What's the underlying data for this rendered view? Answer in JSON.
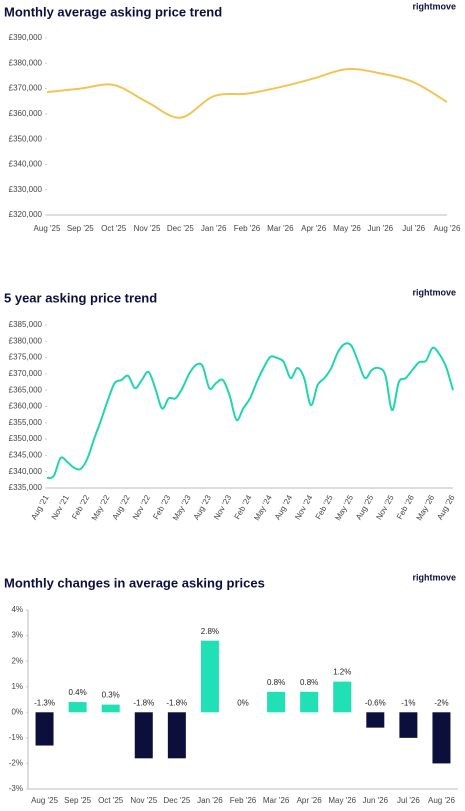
{
  "chart_data": [
    {
      "type": "line",
      "title": "Monthly average asking price trend",
      "logo": "rightmove",
      "color": "#f3c453",
      "categories": [
        "Aug '25",
        "Sep '25",
        "Oct '25",
        "Nov '25",
        "Dec '25",
        "Jan '26",
        "Feb '26",
        "Mar '26",
        "Apr '26",
        "May '26",
        "Jun '26",
        "Jul '26",
        "Aug '26"
      ],
      "values": [
        368600,
        370000,
        371400,
        364700,
        358500,
        367000,
        368000,
        370600,
        374000,
        377700,
        376000,
        372500,
        364700
      ],
      "ylim": [
        320000,
        390000
      ],
      "yticks": [
        {
          "value": 320000,
          "label": "£320,000"
        },
        {
          "value": 330000,
          "label": "£330,000"
        },
        {
          "value": 340000,
          "label": "£340,000"
        },
        {
          "value": 350000,
          "label": "£350,000"
        },
        {
          "value": 360000,
          "label": "£360,000"
        },
        {
          "value": 370000,
          "label": "£370,000"
        },
        {
          "value": 380000,
          "label": "£380,000"
        },
        {
          "value": 390000,
          "label": "£390,000"
        }
      ]
    },
    {
      "type": "line",
      "title": "5 year asking price trend",
      "logo": "rightmove",
      "color": "#1fd6ae",
      "categories": [
        "Aug '21",
        null,
        null,
        "Nov '21",
        null,
        null,
        "Feb '22",
        null,
        null,
        "May '22",
        null,
        null,
        "Aug '22",
        null,
        null,
        "Nov '22",
        null,
        null,
        "Feb '23",
        null,
        null,
        "May '23",
        null,
        null,
        "Aug '23",
        null,
        null,
        "Nov '23",
        null,
        null,
        "Feb '24",
        null,
        null,
        "May '24",
        null,
        null,
        "Aug '24",
        null,
        null,
        "Nov '24",
        null,
        null,
        "Feb '25",
        null,
        null,
        "May '25",
        null,
        null,
        "Aug '25",
        null,
        null,
        "Nov '25",
        null,
        null,
        "Feb '26",
        null,
        null,
        "May '26",
        null,
        null,
        "Aug '26"
      ],
      "values": [
        338100,
        338700,
        344200,
        343000,
        341200,
        340900,
        344200,
        350300,
        355900,
        362000,
        367200,
        368100,
        369400,
        365600,
        368100,
        370600,
        365600,
        359400,
        362500,
        362500,
        365600,
        370000,
        372700,
        372400,
        365600,
        367200,
        368100,
        363300,
        355900,
        359400,
        362500,
        367500,
        371800,
        375200,
        374900,
        373600,
        368700,
        371800,
        368700,
        360400,
        366600,
        368700,
        371800,
        376700,
        379200,
        378600,
        373600,
        368700,
        371200,
        371800,
        369600,
        358900,
        367500,
        368700,
        371200,
        373600,
        374000,
        378000,
        376000,
        372000,
        365000
      ],
      "ylim": [
        335000,
        385000
      ],
      "yticks": [
        {
          "value": 335000,
          "label": "£335,000"
        },
        {
          "value": 340000,
          "label": "£340,000"
        },
        {
          "value": 345000,
          "label": "£345,000"
        },
        {
          "value": 350000,
          "label": "£350,000"
        },
        {
          "value": 355000,
          "label": "£355,000"
        },
        {
          "value": 360000,
          "label": "£360,000"
        },
        {
          "value": 365000,
          "label": "£365,000"
        },
        {
          "value": 370000,
          "label": "£370,000"
        },
        {
          "value": 375000,
          "label": "£375,000"
        },
        {
          "value": 380000,
          "label": "£380,000"
        },
        {
          "value": 385000,
          "label": "£385,000"
        }
      ]
    },
    {
      "type": "bar",
      "title": "Monthly changes in average asking prices",
      "logo": "rightmove",
      "positive_color": "#21e0b5",
      "negative_color": "#0c0f3c",
      "categories": [
        "Aug '25",
        "Sep '25",
        "Oct '25",
        "Nov '25",
        "Dec '25",
        "Jan '26",
        "Feb '26",
        "Mar '26",
        "Apr '26",
        "May '26",
        "Jun '26",
        "Jul '26",
        "Aug '26"
      ],
      "values": [
        -1.3,
        0.4,
        0.3,
        -1.8,
        -1.8,
        2.8,
        0,
        0.8,
        0.8,
        1.2,
        -0.6,
        -1,
        -2
      ],
      "value_labels": [
        "-1.3%",
        "0.4%",
        "0.3%",
        "-1.8%",
        "-1.8%",
        "2.8%",
        "0%",
        "0.8%",
        "0.8%",
        "1.2%",
        "-0.6%",
        "-1%",
        "-2%"
      ],
      "ylim": [
        -3,
        4
      ],
      "yticks": [
        {
          "value": -3,
          "label": "-3%"
        },
        {
          "value": -2,
          "label": "-2%"
        },
        {
          "value": -1,
          "label": "-1%"
        },
        {
          "value": 0,
          "label": "0%"
        },
        {
          "value": 1,
          "label": "1%"
        },
        {
          "value": 2,
          "label": "2%"
        },
        {
          "value": 3,
          "label": "3%"
        },
        {
          "value": 4,
          "label": "4%"
        }
      ]
    }
  ]
}
